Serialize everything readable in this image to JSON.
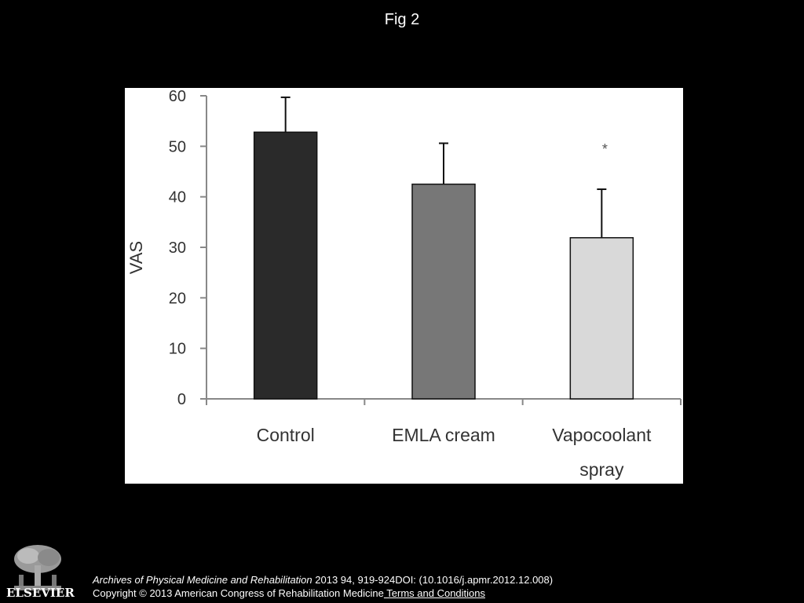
{
  "slide": {
    "title": "Fig 2"
  },
  "chart_data": {
    "type": "bar",
    "categories": [
      "Control",
      "EMLA cream",
      "Vapocoolant spray"
    ],
    "category_lines": [
      [
        "Control"
      ],
      [
        "EMLA cream"
      ],
      [
        "Vapocoolant",
        "spray"
      ]
    ],
    "values": [
      52.8,
      42.5,
      31.9
    ],
    "error_plus": [
      6.9,
      8.1,
      9.6
    ],
    "colors": [
      "#2a2a2a",
      "#777777",
      "#d9d9d9"
    ],
    "significance": [
      "",
      "",
      "*"
    ],
    "ylabel": "VAS",
    "xlabel": "",
    "title": "",
    "ylim": [
      0,
      60
    ],
    "yticks": [
      0,
      10,
      20,
      30,
      40,
      50,
      60
    ],
    "grid": false
  },
  "footer": {
    "journal": "Archives of Physical Medicine and Rehabilitation",
    "citation": " 2013 94, 919-924DOI: (10.1016/j.apmr.2012.12.008)",
    "copyright": "Copyright © 2013 American Congress of Rehabilitation Medicine",
    "terms": " Terms and Conditions"
  },
  "logo": {
    "text": "ELSEVIER",
    "icon": "elsevier-tree-icon"
  }
}
